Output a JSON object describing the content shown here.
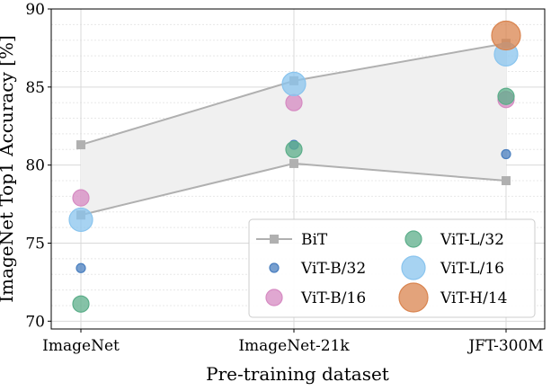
{
  "chart_data": {
    "type": "scatter",
    "xlabel": "Pre-training dataset",
    "ylabel": "ImageNet Top1 Accuracy [%]",
    "categories": [
      "ImageNet",
      "ImageNet-21k",
      "JFT-300M"
    ],
    "ylim": [
      69.5,
      90
    ],
    "yticks": [
      "70",
      "75",
      "80",
      "85",
      "90"
    ],
    "grid": true,
    "legend_position": "bottom-right",
    "bit_band": {
      "name": "BiT",
      "upper": [
        81.3,
        85.4,
        87.8
      ],
      "lower": [
        76.8,
        80.1,
        79.0
      ],
      "color": "#b0b0b0"
    },
    "series": [
      {
        "name": "ViT-B/32",
        "values": [
          73.4,
          81.3,
          80.7
        ],
        "color": "#4a7fbf",
        "size": "small"
      },
      {
        "name": "ViT-B/16",
        "values": [
          77.9,
          84.0,
          84.2
        ],
        "color": "#d68ac2",
        "size": "medium"
      },
      {
        "name": "ViT-L/32",
        "values": [
          71.1,
          81.0,
          84.4
        ],
        "color": "#5cae8a",
        "size": "medium"
      },
      {
        "name": "ViT-L/16",
        "values": [
          76.5,
          85.2,
          87.1
        ],
        "color": "#89c4ee",
        "size": "large"
      },
      {
        "name": "ViT-H/14",
        "values": [
          null,
          null,
          88.3
        ],
        "color": "#d9844f",
        "size": "xlarge"
      }
    ]
  }
}
